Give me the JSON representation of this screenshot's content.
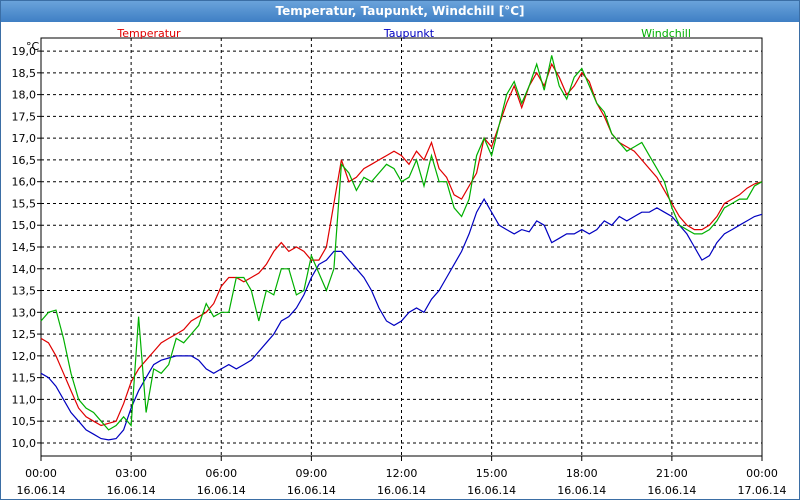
{
  "window": {
    "title": "Temperatur, Taupunkt, Windchill [°C]"
  },
  "chart_data": {
    "type": "line",
    "title": "Temperatur, Taupunkt, Windchill [°C]",
    "ylabel": "°C",
    "ylim": [
      9.7,
      19.3
    ],
    "xlim_hours": [
      0,
      24
    ],
    "grid": true,
    "legend": "top",
    "y_ticks": [
      "10,0",
      "10,5",
      "11,0",
      "11,5",
      "12,0",
      "12,5",
      "13,0",
      "13,5",
      "14,0",
      "14,5",
      "15,0",
      "15,5",
      "16,0",
      "16,5",
      "17,0",
      "17,5",
      "18,0",
      "18,5",
      "19,0"
    ],
    "x_ticks": [
      {
        "time": "00:00",
        "date": "16.06.14"
      },
      {
        "time": "03:00",
        "date": "16.06.14"
      },
      {
        "time": "06:00",
        "date": "16.06.14"
      },
      {
        "time": "09:00",
        "date": "16.06.14"
      },
      {
        "time": "12:00",
        "date": "16.06.14"
      },
      {
        "time": "15:00",
        "date": "16.06.14"
      },
      {
        "time": "18:00",
        "date": "16.06.14"
      },
      {
        "time": "21:00",
        "date": "16.06.14"
      },
      {
        "time": "00:00",
        "date": "17.06.14"
      }
    ],
    "series": [
      {
        "name": "Temperatur",
        "color": "#e00000",
        "points": [
          [
            0,
            12.4
          ],
          [
            0.25,
            12.3
          ],
          [
            0.5,
            12.0
          ],
          [
            0.75,
            11.6
          ],
          [
            1.0,
            11.2
          ],
          [
            1.25,
            10.8
          ],
          [
            1.5,
            10.6
          ],
          [
            1.75,
            10.5
          ],
          [
            2.0,
            10.4
          ],
          [
            2.25,
            10.45
          ],
          [
            2.5,
            10.5
          ],
          [
            2.75,
            10.9
          ],
          [
            3.0,
            11.4
          ],
          [
            3.25,
            11.7
          ],
          [
            3.5,
            11.9
          ],
          [
            3.75,
            12.1
          ],
          [
            4.0,
            12.3
          ],
          [
            4.25,
            12.4
          ],
          [
            4.5,
            12.5
          ],
          [
            4.75,
            12.6
          ],
          [
            5.0,
            12.8
          ],
          [
            5.25,
            12.9
          ],
          [
            5.5,
            13.0
          ],
          [
            5.75,
            13.2
          ],
          [
            6.0,
            13.6
          ],
          [
            6.25,
            13.8
          ],
          [
            6.5,
            13.8
          ],
          [
            6.75,
            13.7
          ],
          [
            7.0,
            13.8
          ],
          [
            7.25,
            13.9
          ],
          [
            7.5,
            14.1
          ],
          [
            7.75,
            14.4
          ],
          [
            8.0,
            14.6
          ],
          [
            8.25,
            14.4
          ],
          [
            8.5,
            14.5
          ],
          [
            8.75,
            14.4
          ],
          [
            9.0,
            14.2
          ],
          [
            9.25,
            14.2
          ],
          [
            9.5,
            14.5
          ],
          [
            9.75,
            15.5
          ],
          [
            10.0,
            16.5
          ],
          [
            10.25,
            16.0
          ],
          [
            10.5,
            16.1
          ],
          [
            10.75,
            16.3
          ],
          [
            11.0,
            16.4
          ],
          [
            11.25,
            16.5
          ],
          [
            11.5,
            16.6
          ],
          [
            11.75,
            16.7
          ],
          [
            12.0,
            16.6
          ],
          [
            12.25,
            16.4
          ],
          [
            12.5,
            16.7
          ],
          [
            12.75,
            16.5
          ],
          [
            13.0,
            16.9
          ],
          [
            13.25,
            16.3
          ],
          [
            13.5,
            16.1
          ],
          [
            13.75,
            15.7
          ],
          [
            14.0,
            15.6
          ],
          [
            14.25,
            15.9
          ],
          [
            14.5,
            16.2
          ],
          [
            14.75,
            17.0
          ],
          [
            15.0,
            16.8
          ],
          [
            15.25,
            17.3
          ],
          [
            15.5,
            17.8
          ],
          [
            15.75,
            18.2
          ],
          [
            16.0,
            17.7
          ],
          [
            16.25,
            18.2
          ],
          [
            16.5,
            18.5
          ],
          [
            16.75,
            18.2
          ],
          [
            17.0,
            18.7
          ],
          [
            17.25,
            18.4
          ],
          [
            17.5,
            18.0
          ],
          [
            17.75,
            18.2
          ],
          [
            18.0,
            18.5
          ],
          [
            18.25,
            18.3
          ],
          [
            18.5,
            17.8
          ],
          [
            18.75,
            17.5
          ],
          [
            19.0,
            17.1
          ],
          [
            19.25,
            16.9
          ],
          [
            19.5,
            16.8
          ],
          [
            19.75,
            16.7
          ],
          [
            20.0,
            16.5
          ],
          [
            20.25,
            16.3
          ],
          [
            20.5,
            16.1
          ],
          [
            20.75,
            15.8
          ],
          [
            21.0,
            15.5
          ],
          [
            21.25,
            15.2
          ],
          [
            21.5,
            15.0
          ],
          [
            21.75,
            14.9
          ],
          [
            22.0,
            14.9
          ],
          [
            22.25,
            15.0
          ],
          [
            22.5,
            15.2
          ],
          [
            22.75,
            15.5
          ],
          [
            23.0,
            15.6
          ],
          [
            23.25,
            15.7
          ],
          [
            23.5,
            15.85
          ],
          [
            23.75,
            15.95
          ],
          [
            24.0,
            16.0
          ]
        ]
      },
      {
        "name": "Taupunkt",
        "color": "#0000c0",
        "points": [
          [
            0,
            11.6
          ],
          [
            0.25,
            11.5
          ],
          [
            0.5,
            11.3
          ],
          [
            0.75,
            11.0
          ],
          [
            1.0,
            10.7
          ],
          [
            1.25,
            10.5
          ],
          [
            1.5,
            10.3
          ],
          [
            1.75,
            10.2
          ],
          [
            2.0,
            10.1
          ],
          [
            2.25,
            10.07
          ],
          [
            2.5,
            10.1
          ],
          [
            2.75,
            10.3
          ],
          [
            3.0,
            10.8
          ],
          [
            3.25,
            11.2
          ],
          [
            3.5,
            11.5
          ],
          [
            3.75,
            11.8
          ],
          [
            4.0,
            11.9
          ],
          [
            4.25,
            11.95
          ],
          [
            4.5,
            12.0
          ],
          [
            4.75,
            12.0
          ],
          [
            5.0,
            12.0
          ],
          [
            5.25,
            11.9
          ],
          [
            5.5,
            11.7
          ],
          [
            5.75,
            11.6
          ],
          [
            6.0,
            11.7
          ],
          [
            6.25,
            11.8
          ],
          [
            6.5,
            11.7
          ],
          [
            6.75,
            11.8
          ],
          [
            7.0,
            11.9
          ],
          [
            7.25,
            12.1
          ],
          [
            7.5,
            12.3
          ],
          [
            7.75,
            12.5
          ],
          [
            8.0,
            12.8
          ],
          [
            8.25,
            12.9
          ],
          [
            8.5,
            13.1
          ],
          [
            8.75,
            13.4
          ],
          [
            9.0,
            13.8
          ],
          [
            9.25,
            14.1
          ],
          [
            9.5,
            14.2
          ],
          [
            9.75,
            14.4
          ],
          [
            10.0,
            14.4
          ],
          [
            10.25,
            14.2
          ],
          [
            10.5,
            14.0
          ],
          [
            10.75,
            13.8
          ],
          [
            11.0,
            13.5
          ],
          [
            11.25,
            13.1
          ],
          [
            11.5,
            12.8
          ],
          [
            11.75,
            12.7
          ],
          [
            12.0,
            12.8
          ],
          [
            12.25,
            13.0
          ],
          [
            12.5,
            13.1
          ],
          [
            12.75,
            13.0
          ],
          [
            13.0,
            13.3
          ],
          [
            13.25,
            13.5
          ],
          [
            13.5,
            13.8
          ],
          [
            13.75,
            14.1
          ],
          [
            14.0,
            14.4
          ],
          [
            14.25,
            14.8
          ],
          [
            14.5,
            15.3
          ],
          [
            14.75,
            15.6
          ],
          [
            15.0,
            15.3
          ],
          [
            15.25,
            15.0
          ],
          [
            15.5,
            14.9
          ],
          [
            15.75,
            14.8
          ],
          [
            16.0,
            14.9
          ],
          [
            16.25,
            14.85
          ],
          [
            16.5,
            15.1
          ],
          [
            16.75,
            15.0
          ],
          [
            17.0,
            14.6
          ],
          [
            17.25,
            14.7
          ],
          [
            17.5,
            14.8
          ],
          [
            17.75,
            14.8
          ],
          [
            18.0,
            14.9
          ],
          [
            18.25,
            14.8
          ],
          [
            18.5,
            14.9
          ],
          [
            18.75,
            15.1
          ],
          [
            19.0,
            15.0
          ],
          [
            19.25,
            15.2
          ],
          [
            19.5,
            15.1
          ],
          [
            19.75,
            15.2
          ],
          [
            20.0,
            15.3
          ],
          [
            20.25,
            15.3
          ],
          [
            20.5,
            15.4
          ],
          [
            20.75,
            15.3
          ],
          [
            21.0,
            15.2
          ],
          [
            21.25,
            15.0
          ],
          [
            21.5,
            14.8
          ],
          [
            21.75,
            14.5
          ],
          [
            22.0,
            14.2
          ],
          [
            22.25,
            14.3
          ],
          [
            22.5,
            14.6
          ],
          [
            22.75,
            14.8
          ],
          [
            23.0,
            14.9
          ],
          [
            23.25,
            15.0
          ],
          [
            23.5,
            15.1
          ],
          [
            23.75,
            15.2
          ],
          [
            24.0,
            15.25
          ]
        ]
      },
      {
        "name": "Windchill",
        "color": "#00b000",
        "points": [
          [
            0,
            12.8
          ],
          [
            0.25,
            13.0
          ],
          [
            0.5,
            13.05
          ],
          [
            0.75,
            12.4
          ],
          [
            1.0,
            11.6
          ],
          [
            1.25,
            11.0
          ],
          [
            1.5,
            10.8
          ],
          [
            1.75,
            10.7
          ],
          [
            2.0,
            10.5
          ],
          [
            2.25,
            10.3
          ],
          [
            2.5,
            10.4
          ],
          [
            2.75,
            10.6
          ],
          [
            3.0,
            10.4
          ],
          [
            3.25,
            12.9
          ],
          [
            3.5,
            10.7
          ],
          [
            3.75,
            11.7
          ],
          [
            4.0,
            11.6
          ],
          [
            4.25,
            11.8
          ],
          [
            4.5,
            12.4
          ],
          [
            4.75,
            12.3
          ],
          [
            5.0,
            12.5
          ],
          [
            5.25,
            12.7
          ],
          [
            5.5,
            13.2
          ],
          [
            5.75,
            12.9
          ],
          [
            6.0,
            13.0
          ],
          [
            6.25,
            13.0
          ],
          [
            6.5,
            13.8
          ],
          [
            6.75,
            13.8
          ],
          [
            7.0,
            13.5
          ],
          [
            7.25,
            12.8
          ],
          [
            7.5,
            13.5
          ],
          [
            7.75,
            13.4
          ],
          [
            8.0,
            14.0
          ],
          [
            8.25,
            14.0
          ],
          [
            8.5,
            13.4
          ],
          [
            8.75,
            13.5
          ],
          [
            9.0,
            14.3
          ],
          [
            9.25,
            13.9
          ],
          [
            9.5,
            13.5
          ],
          [
            9.75,
            14.0
          ],
          [
            10.0,
            16.4
          ],
          [
            10.25,
            16.2
          ],
          [
            10.5,
            15.8
          ],
          [
            10.75,
            16.1
          ],
          [
            11.0,
            16.0
          ],
          [
            11.25,
            16.2
          ],
          [
            11.5,
            16.4
          ],
          [
            11.75,
            16.3
          ],
          [
            12.0,
            16.0
          ],
          [
            12.25,
            16.1
          ],
          [
            12.5,
            16.5
          ],
          [
            12.75,
            15.9
          ],
          [
            13.0,
            16.6
          ],
          [
            13.25,
            16.0
          ],
          [
            13.5,
            16.0
          ],
          [
            13.75,
            15.4
          ],
          [
            14.0,
            15.2
          ],
          [
            14.25,
            15.6
          ],
          [
            14.5,
            16.6
          ],
          [
            14.75,
            17.0
          ],
          [
            15.0,
            16.6
          ],
          [
            15.25,
            17.3
          ],
          [
            15.5,
            18.0
          ],
          [
            15.75,
            18.3
          ],
          [
            16.0,
            17.8
          ],
          [
            16.25,
            18.2
          ],
          [
            16.5,
            18.7
          ],
          [
            16.75,
            18.1
          ],
          [
            17.0,
            18.9
          ],
          [
            17.25,
            18.2
          ],
          [
            17.5,
            17.9
          ],
          [
            17.75,
            18.4
          ],
          [
            18.0,
            18.6
          ],
          [
            18.25,
            18.2
          ],
          [
            18.5,
            17.8
          ],
          [
            18.75,
            17.6
          ],
          [
            19.0,
            17.1
          ],
          [
            19.25,
            16.9
          ],
          [
            19.5,
            16.7
          ],
          [
            19.75,
            16.8
          ],
          [
            20.0,
            16.9
          ],
          [
            20.25,
            16.6
          ],
          [
            20.5,
            16.3
          ],
          [
            20.75,
            16.0
          ],
          [
            21.0,
            15.4
          ],
          [
            21.25,
            15.0
          ],
          [
            21.5,
            14.9
          ],
          [
            21.75,
            14.8
          ],
          [
            22.0,
            14.8
          ],
          [
            22.25,
            14.9
          ],
          [
            22.5,
            15.1
          ],
          [
            22.75,
            15.4
          ],
          [
            23.0,
            15.5
          ],
          [
            23.25,
            15.6
          ],
          [
            23.5,
            15.6
          ],
          [
            23.75,
            15.9
          ],
          [
            24.0,
            16.0
          ]
        ]
      }
    ]
  }
}
